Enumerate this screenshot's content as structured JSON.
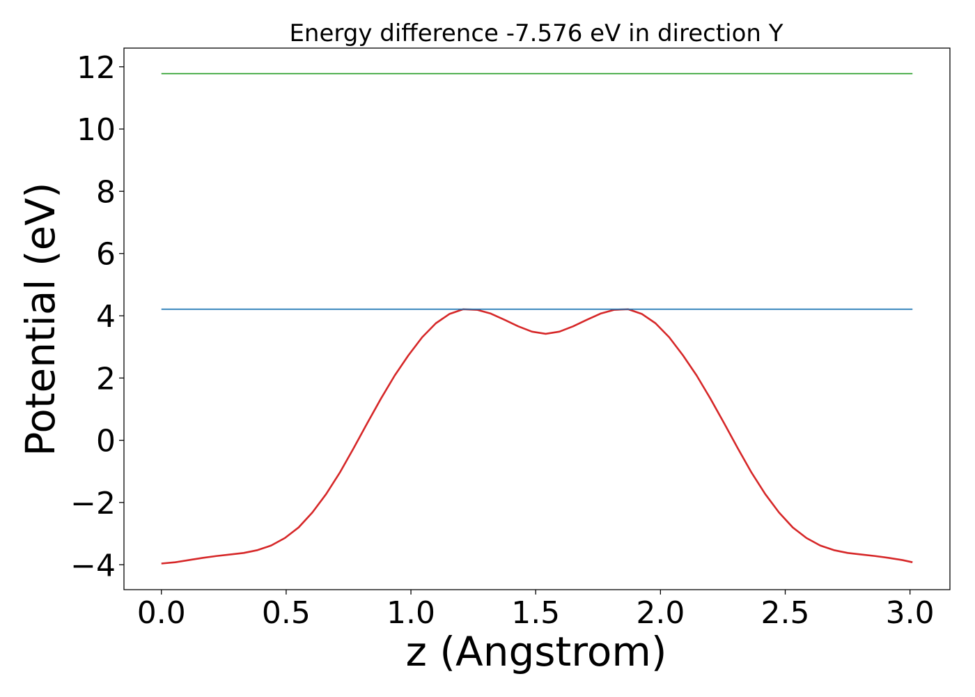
{
  "chart_data": {
    "type": "line",
    "title": "Energy difference -7.576 eV in direction Y",
    "xlabel": "z (Angstrom)",
    "ylabel": "Potential (eV)",
    "xlim": [
      -0.15,
      3.16
    ],
    "ylim": [
      -4.8,
      12.6
    ],
    "xticks": [
      0.0,
      0.5,
      1.0,
      1.5,
      2.0,
      2.5,
      3.0
    ],
    "xtick_labels": [
      "0.0",
      "0.5",
      "1.0",
      "1.5",
      "2.0",
      "2.5",
      "3.0"
    ],
    "yticks": [
      -4,
      -2,
      0,
      2,
      4,
      6,
      8,
      10,
      12
    ],
    "ytick_labels": [
      "−4",
      "−2",
      "0",
      "2",
      "4",
      "6",
      "8",
      "10",
      "12"
    ],
    "grid": false,
    "legend": false,
    "series": [
      {
        "color": "#d62728",
        "x": [
          0.0,
          0.055,
          0.11,
          0.165,
          0.22,
          0.275,
          0.33,
          0.385,
          0.44,
          0.495,
          0.55,
          0.605,
          0.66,
          0.715,
          0.77,
          0.825,
          0.88,
          0.935,
          0.99,
          1.045,
          1.1,
          1.155,
          1.21,
          1.265,
          1.32,
          1.375,
          1.43,
          1.485,
          1.54,
          1.595,
          1.65,
          1.705,
          1.76,
          1.815,
          1.87,
          1.925,
          1.98,
          2.035,
          2.09,
          2.145,
          2.2,
          2.255,
          2.31,
          2.365,
          2.42,
          2.475,
          2.53,
          2.585,
          2.64,
          2.695,
          2.75,
          2.805,
          2.86,
          2.915,
          2.97,
          3.01
        ],
        "y": [
          -3.96,
          -3.92,
          -3.85,
          -3.78,
          -3.72,
          -3.67,
          -3.62,
          -3.53,
          -3.38,
          -3.14,
          -2.8,
          -2.32,
          -1.73,
          -1.04,
          -0.26,
          0.55,
          1.34,
          2.08,
          2.73,
          3.31,
          3.76,
          4.06,
          4.21,
          4.19,
          4.07,
          3.87,
          3.66,
          3.49,
          3.42,
          3.49,
          3.66,
          3.87,
          4.07,
          4.19,
          4.21,
          4.06,
          3.76,
          3.31,
          2.73,
          2.08,
          1.34,
          0.55,
          -0.26,
          -1.04,
          -1.73,
          -2.32,
          -2.8,
          -3.14,
          -3.38,
          -3.53,
          -3.62,
          -3.67,
          -3.72,
          -3.78,
          -3.85,
          -3.92
        ]
      },
      {
        "color": "#1f77b4",
        "x": [
          0.0,
          3.01
        ],
        "y": [
          4.21,
          4.21
        ]
      },
      {
        "color": "#2ca02c",
        "x": [
          0.0,
          3.01
        ],
        "y": [
          11.78,
          11.78
        ]
      }
    ]
  }
}
